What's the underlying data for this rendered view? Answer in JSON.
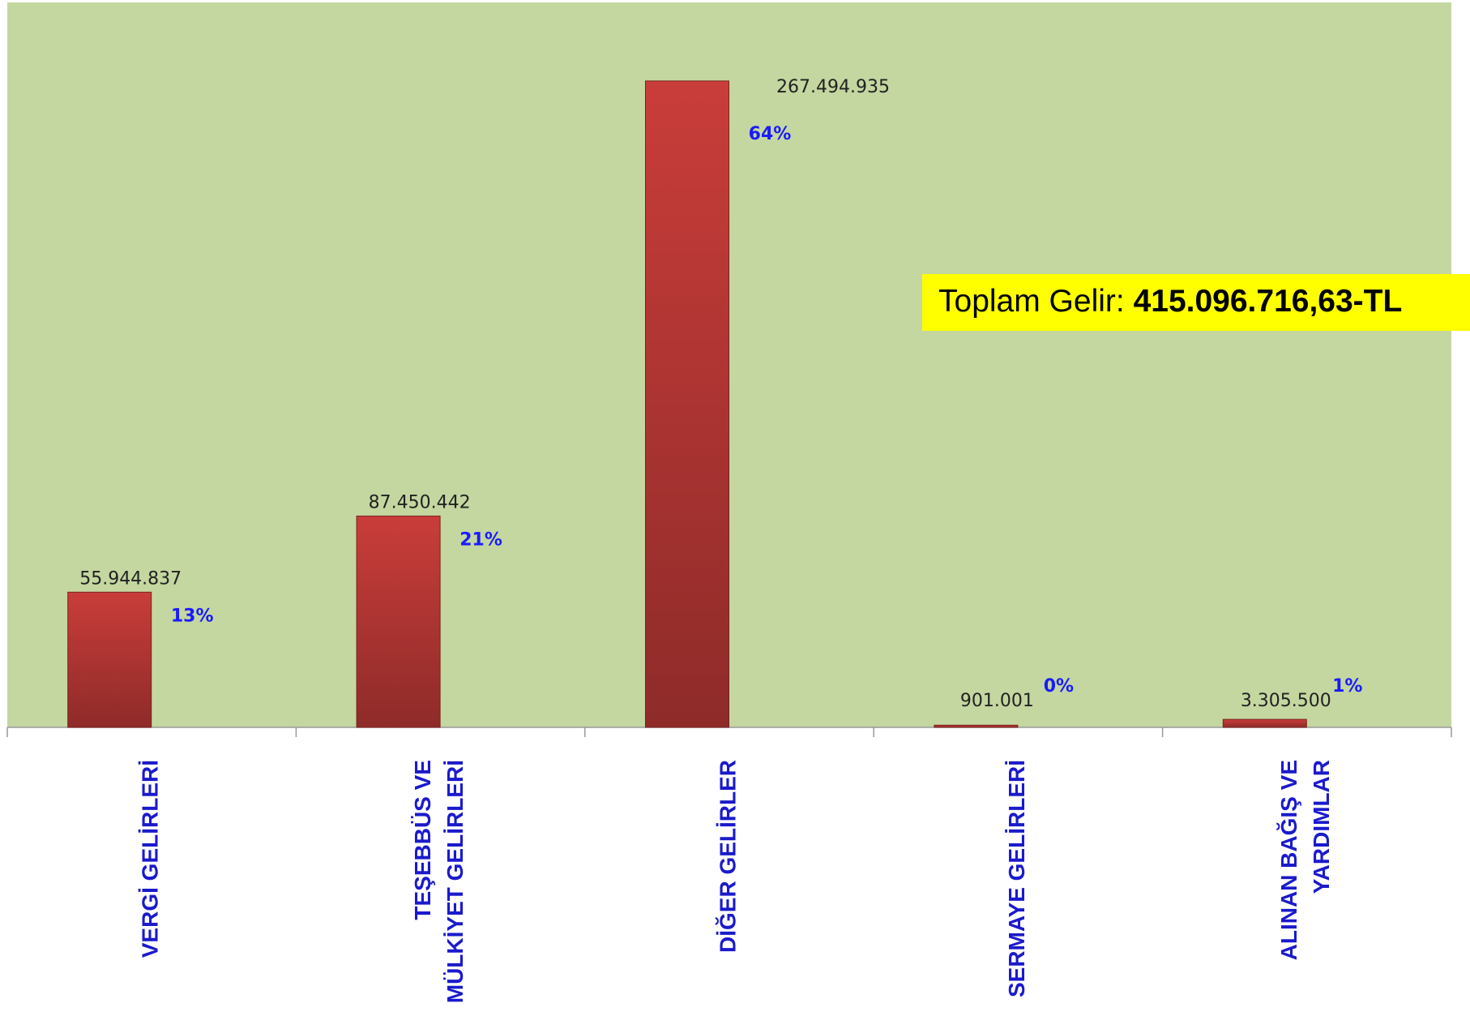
{
  "chart_data": {
    "type": "bar",
    "categories": [
      [
        "VERGİ GELİRLERİ"
      ],
      [
        "TEŞEBBÜS VE",
        "MÜLKİYET GELİRLERİ"
      ],
      [
        "DİĞER GELİRLER"
      ],
      [
        "SERMAYE GELİRLERİ"
      ],
      [
        "ALINAN BAĞIŞ VE",
        "YARDIMLAR"
      ]
    ],
    "values": [
      55944837,
      87450442,
      267494935,
      901001,
      3305500
    ],
    "value_labels": [
      "55.944.837",
      "87.450.442",
      "267.494.935",
      "901.001",
      "3.305.500"
    ],
    "percent_labels": [
      "13%",
      "21%",
      "64%",
      "0%",
      "1%"
    ],
    "color": "#c23b36",
    "ylim": [
      0,
      300000000
    ],
    "annotation": {
      "label": "Toplam Gelir: ",
      "value": "415.096.716,63-TL"
    }
  }
}
